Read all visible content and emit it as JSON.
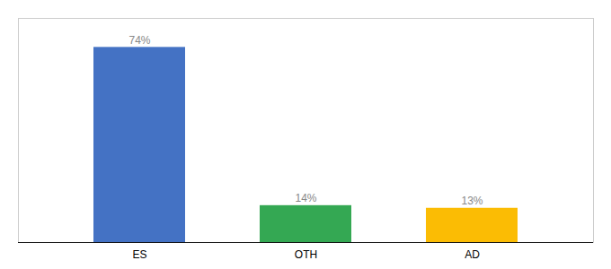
{
  "chart_data": {
    "type": "bar",
    "categories": [
      "ES",
      "OTH",
      "AD"
    ],
    "values": [
      74,
      14,
      13
    ],
    "value_labels": [
      "74%",
      "14%",
      "13%"
    ],
    "colors": [
      "#4472C4",
      "#34A853",
      "#FBBC04"
    ],
    "ylim": [
      0,
      85
    ],
    "data_labels": true,
    "tick_labels": "x",
    "grid": false
  }
}
